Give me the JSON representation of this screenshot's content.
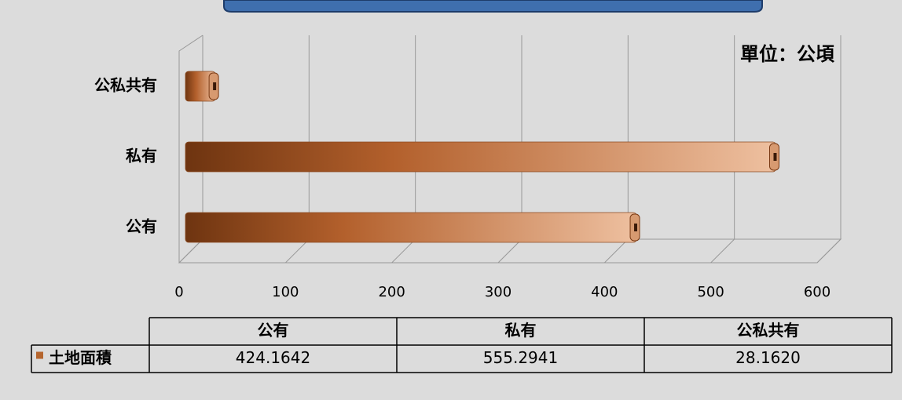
{
  "chart_data": {
    "type": "bar",
    "orientation": "horizontal",
    "annotation": "單位：公頃",
    "categories": [
      "公有",
      "私有",
      "公私共有"
    ],
    "series": [
      {
        "name": "土地面積",
        "color": "#b5652e",
        "values": [
          424.1642,
          555.2941,
          28.162
        ],
        "value_labels": [
          "424.1642",
          "555.2941",
          "28.1620"
        ]
      }
    ],
    "xlim": [
      0,
      600
    ],
    "xticks": [
      0,
      100,
      200,
      300,
      400,
      500,
      600
    ],
    "grid": true
  }
}
